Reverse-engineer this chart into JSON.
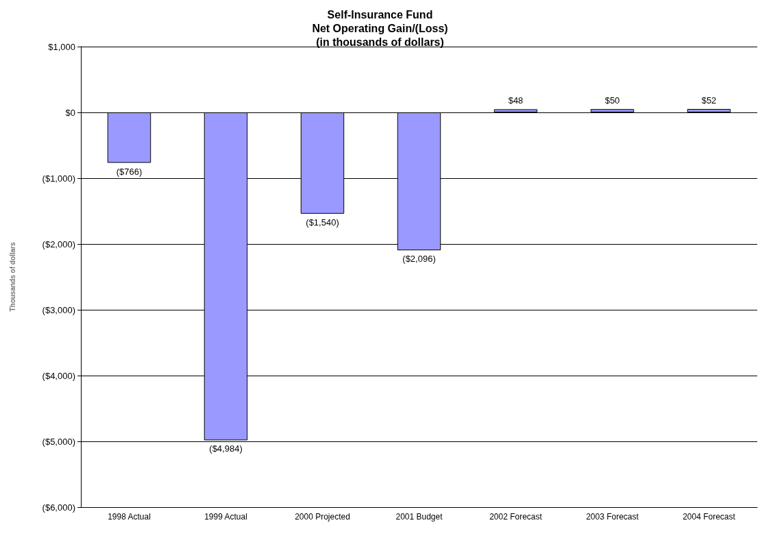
{
  "chart_data": {
    "type": "bar",
    "title": "Self-Insurance Fund\nNet Operating Gain/(Loss)\n(in thousands of dollars)",
    "ylabel": "Thousands of dollars",
    "categories": [
      "1998 Actual",
      "1999 Actual",
      "2000 Projected",
      "2001 Budget",
      "2002 Forecast",
      "2003 Forecast",
      "2004 Forecast"
    ],
    "values": [
      -766,
      -4984,
      -1540,
      -2096,
      48,
      50,
      52
    ],
    "value_labels": [
      "($766)",
      "($4,984)",
      "($1,540)",
      "($2,096)",
      "$48",
      "$50",
      "$52"
    ],
    "color": "#9999ff",
    "ylim": [
      -6000,
      1000
    ],
    "yticks": [
      {
        "value": -6000,
        "label": "($6,000)"
      },
      {
        "value": -5000,
        "label": "($5,000)"
      },
      {
        "value": -4000,
        "label": "($4,000)"
      },
      {
        "value": -3000,
        "label": "($3,000)"
      },
      {
        "value": -2000,
        "label": "($2,000)"
      },
      {
        "value": -1000,
        "label": "($1,000)"
      },
      {
        "value": 0,
        "label": "$0"
      },
      {
        "value": 1000,
        "label": "$1,000"
      }
    ],
    "grid": "y"
  }
}
